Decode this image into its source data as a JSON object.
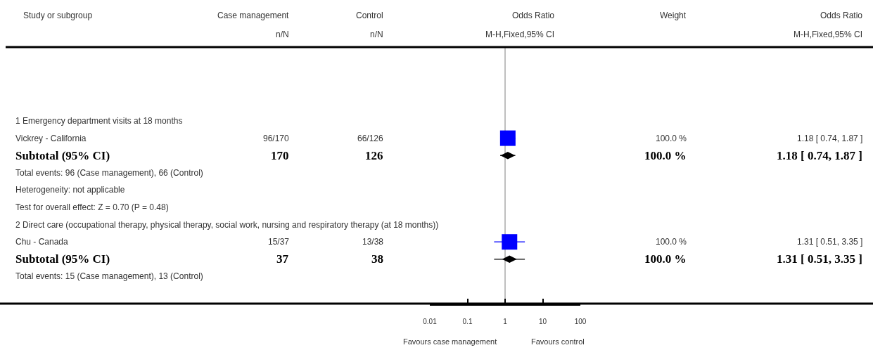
{
  "chart_data": {
    "type": "scatter",
    "categories": [
      "1 Emergency department visits at 18 months",
      "Vickrey - California",
      "Subtotal (95% CI)",
      "Total events: 96 (Case management), 66 (Control)",
      "Heterogeneity: not applicable",
      "Test for overall effect: Z = 0.70 (P = 0.48)",
      "2 Direct care (occupational therapy, physical therapy, social work, nursing and respiratory therapy (at 18 months))",
      "Chu - Canada",
      "Subtotal (95% CI)",
      "Total events: 15 (Case management), 13 (Control)"
    ],
    "orientation": "horizontal",
    "series": [
      {
        "color": "#0000ff",
        "marker": "square",
        "values": [
          null,
          1.18,
          null,
          null,
          null,
          null,
          null,
          1.31,
          null,
          null
        ],
        "errors": [
          null,
          [
            0.74,
            1.87
          ],
          null,
          null,
          null,
          null,
          null,
          [
            0.51,
            3.35
          ],
          null,
          null
        ]
      },
      {
        "color": "#000000",
        "marker": "diamond",
        "values": [
          null,
          null,
          1.18,
          null,
          null,
          null,
          null,
          null,
          1.31,
          null
        ],
        "errors": [
          null,
          null,
          [
            0.74,
            1.87
          ],
          null,
          null,
          null,
          null,
          null,
          [
            0.51,
            3.35
          ],
          null
        ]
      }
    ],
    "log": "x",
    "xlim": [
      0.01,
      100
    ],
    "xticks": [
      0.01,
      0.1,
      1,
      10,
      100
    ],
    "tick_labels": "x",
    "grid": false,
    "ref_lines": [
      {
        "axis": "x",
        "value": 1,
        "color": "#aaaaaa"
      }
    ],
    "annotations": [
      "Study or subgroup",
      "Case management",
      "n/N",
      "Control",
      "n/N",
      "Odds Ratio",
      "M-H,Fixed,95% CI",
      "Weight",
      "Odds Ratio",
      "M-H,Fixed,95% CI",
      "96/170",
      "66/126",
      "100.0 %",
      "1.18 [ 0.74, 1.87 ]",
      "170",
      "126",
      "100.0 %",
      "1.18 [ 0.74, 1.87 ]",
      "15/37",
      "13/38",
      "100.0 %",
      "1.31 [ 0.51, 3.35 ]",
      "37",
      "38",
      "100.0 %",
      "1.31 [ 0.51, 3.35 ]",
      "Favours case management",
      "Favours control"
    ]
  }
}
